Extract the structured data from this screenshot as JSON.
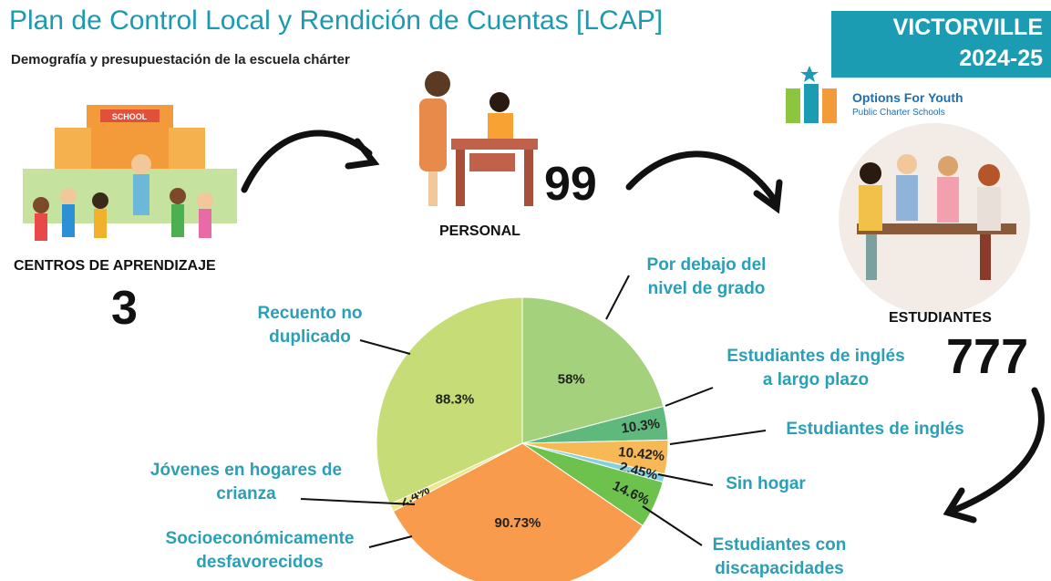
{
  "header": {
    "title": "Plan de Control Local y Rendición de Cuentas [LCAP]",
    "subtitle": "Demografía y presupuestación de la escuela chárter"
  },
  "badge": {
    "city": "VICTORVILLE",
    "year": "2024-25"
  },
  "logo": {
    "name": "Options For Youth",
    "tagline": "Public Charter Schools"
  },
  "stats": {
    "centers_label": "CENTROS DE APRENDIZAJE",
    "centers_value": "3",
    "staff_label": "PERSONAL",
    "staff_value": "99",
    "students_label": "ESTUDIANTES",
    "students_value": "777"
  },
  "chart_data": {
    "type": "pie",
    "categories": [
      "Por debajo del nivel de grado",
      "Estudiantes de inglés a largo plazo",
      "Estudiantes de inglés",
      "Sin hogar",
      "Estudiantes con discapacidades",
      "Socioeconómicamente desfavorecidos",
      "Jóvenes en hogares de crianza",
      "Recuento no duplicado"
    ],
    "values": [
      58,
      10.3,
      10.42,
      2.45,
      14.6,
      90.73,
      2.4,
      88.3
    ],
    "value_labels": [
      "58%",
      "10.3%",
      "10.42%",
      "2.45%",
      "14.6%",
      "90.73%",
      "2.4%",
      "88.3%"
    ],
    "colors": [
      "#a4d17c",
      "#5fb97c",
      "#f7b955",
      "#86d1e0",
      "#6cc24c",
      "#f89b4c",
      "#ece890",
      "#c6dd77"
    ]
  }
}
